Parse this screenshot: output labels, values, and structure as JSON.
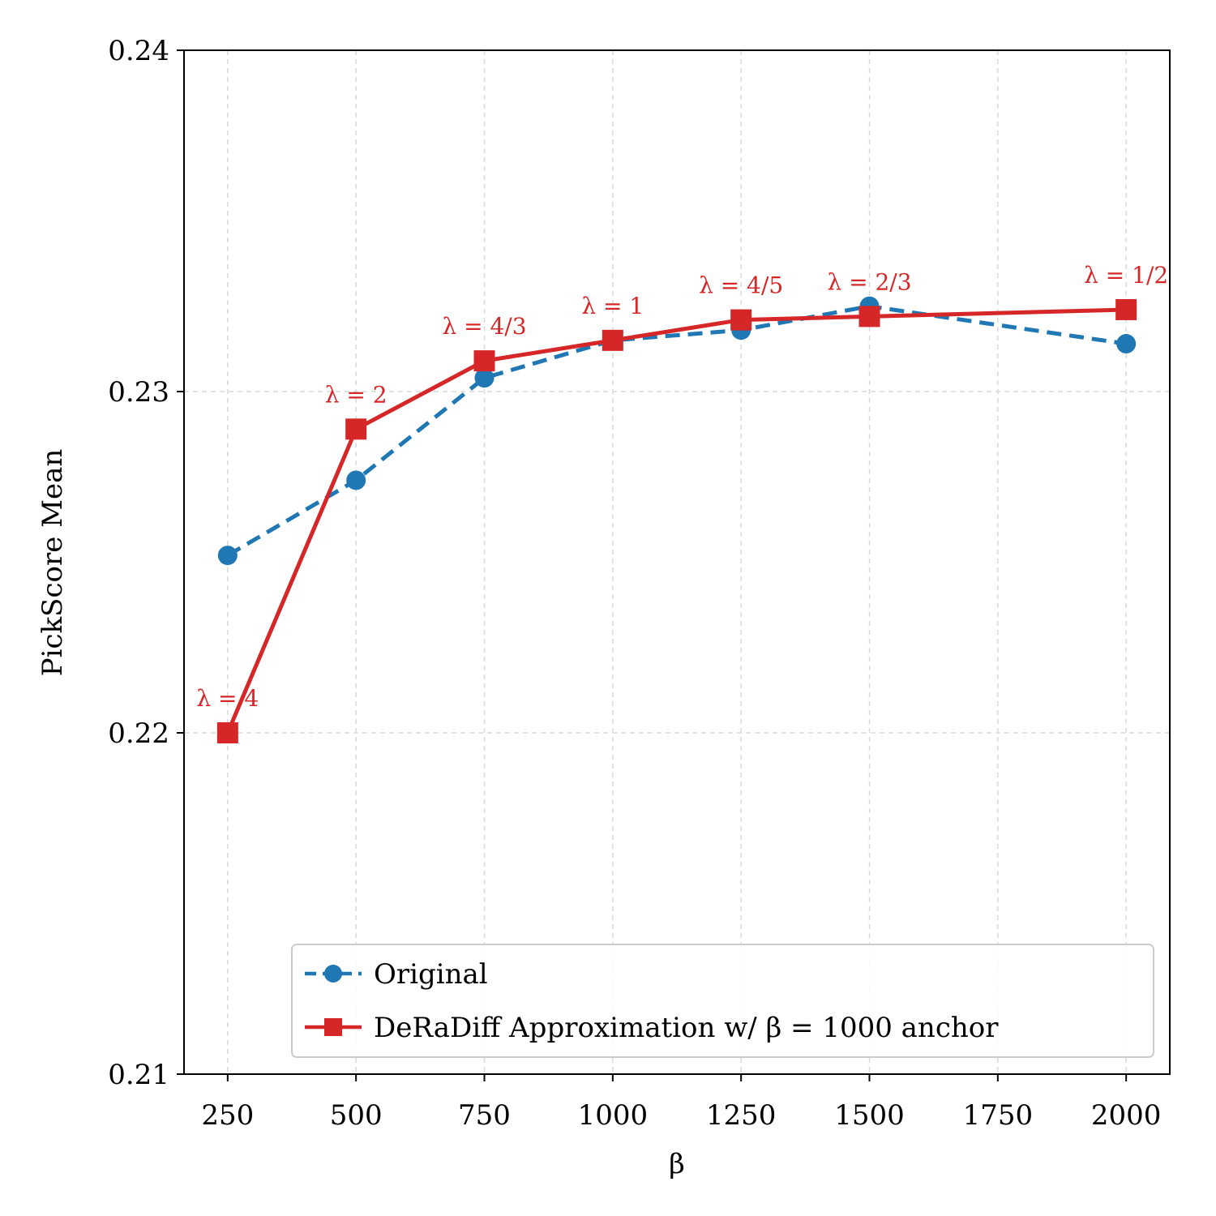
{
  "chart_data": {
    "type": "line",
    "title": "",
    "xlabel": "β",
    "ylabel": "PickScore Mean",
    "x": [
      250,
      500,
      750,
      1000,
      1250,
      1500,
      2000
    ],
    "xticks": [
      250,
      500,
      750,
      1000,
      1250,
      1500,
      1750,
      2000
    ],
    "xlim": [
      165,
      2085
    ],
    "yticks": [
      0.21,
      0.22,
      0.23,
      0.24
    ],
    "ytick_labels": [
      "0.21",
      "0.22",
      "0.23",
      "0.24"
    ],
    "ylim": [
      0.21,
      0.24
    ],
    "grid": true,
    "legend_position": "lower-right",
    "series": [
      {
        "name": "Original",
        "color": "#1f77b4",
        "marker": "circle",
        "linestyle": "dashed",
        "values": [
          0.2252,
          0.2274,
          0.2304,
          0.2315,
          0.2318,
          0.2325,
          0.2314
        ]
      },
      {
        "name": "DeRaDiff Approximation w/ β = 1000 anchor",
        "color": "#d62728",
        "marker": "square",
        "linestyle": "solid",
        "values": [
          0.22,
          0.2289,
          0.2309,
          0.2315,
          0.2321,
          0.2322,
          0.2324
        ]
      }
    ],
    "annotations": [
      {
        "text": "λ = 4",
        "x": 250,
        "y": 0.22
      },
      {
        "text": "λ = 2",
        "x": 500,
        "y": 0.2289
      },
      {
        "text": "λ = 4/3",
        "x": 750,
        "y": 0.2309
      },
      {
        "text": "λ = 1",
        "x": 1000,
        "y": 0.2315
      },
      {
        "text": "λ = 4/5",
        "x": 1250,
        "y": 0.2321
      },
      {
        "text": "λ = 2/3",
        "x": 1500,
        "y": 0.2322
      },
      {
        "text": "λ = 1/2",
        "x": 2000,
        "y": 0.2324
      }
    ]
  }
}
